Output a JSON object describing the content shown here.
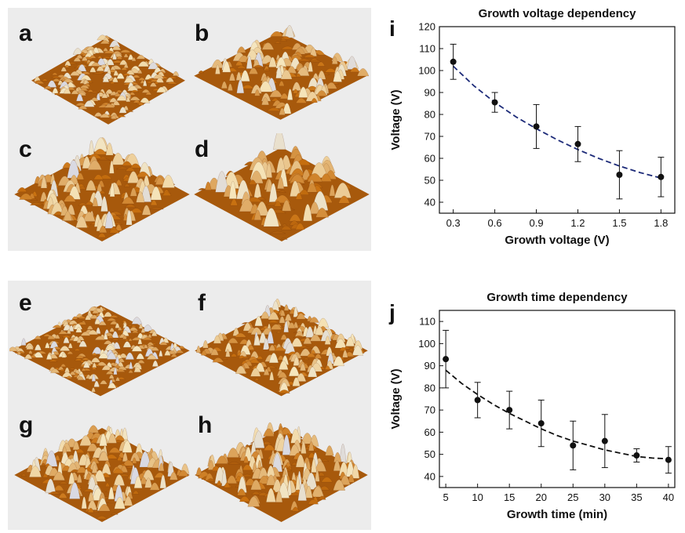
{
  "afm_panels": [
    {
      "label": "a",
      "roughness": 0.3,
      "density": 1.6
    },
    {
      "label": "b",
      "roughness": 0.7,
      "density": 1.0
    },
    {
      "label": "c",
      "roughness": 0.9,
      "density": 1.0
    },
    {
      "label": "d",
      "roughness": 1.2,
      "density": 0.7
    },
    {
      "label": "e",
      "roughness": 0.3,
      "density": 1.8
    },
    {
      "label": "f",
      "roughness": 0.6,
      "density": 1.4
    },
    {
      "label": "g",
      "roughness": 0.8,
      "density": 1.3
    },
    {
      "label": "h",
      "roughness": 1.0,
      "density": 1.3
    }
  ],
  "colors": {
    "afm_low": "#5a2306",
    "afm_mid": "#c8700f",
    "afm_high": "#f6e6bc",
    "afm_peak": "#d9d9e2",
    "afm_background": "#ececec",
    "fit_i": "#1c2a78",
    "fit_j": "#111111"
  },
  "chart_data": [
    {
      "panel_label": "i",
      "type": "scatter",
      "title": "Growth voltage dependency",
      "xlabel": "Growth voltage (V)",
      "ylabel": "Voltage (V)",
      "xlim": [
        0.2,
        1.9
      ],
      "ylim": [
        35,
        120
      ],
      "xticks": [
        "0.3",
        "0.6",
        "0.9",
        "1.2",
        "1.5",
        "1.8"
      ],
      "yticks": [
        "40",
        "50",
        "60",
        "70",
        "80",
        "90",
        "100",
        "110",
        "120"
      ],
      "points": [
        {
          "x": 0.3,
          "y": 104,
          "err": 8
        },
        {
          "x": 0.6,
          "y": 85.5,
          "err": 4.5
        },
        {
          "x": 0.9,
          "y": 74.5,
          "err": 10
        },
        {
          "x": 1.2,
          "y": 66.5,
          "err": 8
        },
        {
          "x": 1.5,
          "y": 52.5,
          "err": 11
        },
        {
          "x": 1.8,
          "y": 51.5,
          "err": 9
        }
      ],
      "fit": {
        "style": "dashed",
        "x": [
          0.3,
          0.45,
          0.6,
          0.75,
          0.9,
          1.05,
          1.2,
          1.35,
          1.5,
          1.65,
          1.8
        ],
        "y": [
          102,
          93,
          85.5,
          79,
          73.5,
          68.5,
          64,
          60,
          56.5,
          53.5,
          51
        ]
      }
    },
    {
      "panel_label": "j",
      "type": "scatter",
      "title": "Growth time dependency",
      "xlabel": "Growth time (min)",
      "ylabel": "Voltage (V)",
      "xlim": [
        4,
        41
      ],
      "ylim": [
        35,
        115
      ],
      "xticks": [
        "5",
        "10",
        "15",
        "20",
        "25",
        "30",
        "35",
        "40"
      ],
      "yticks": [
        "40",
        "50",
        "60",
        "70",
        "80",
        "90",
        "100",
        "110"
      ],
      "points": [
        {
          "x": 5,
          "y": 93,
          "err": 13
        },
        {
          "x": 10,
          "y": 74.5,
          "err": 8
        },
        {
          "x": 15,
          "y": 70,
          "err": 8.5
        },
        {
          "x": 20,
          "y": 64,
          "err": 10.5
        },
        {
          "x": 25,
          "y": 54,
          "err": 11
        },
        {
          "x": 30,
          "y": 56,
          "err": 12
        },
        {
          "x": 35,
          "y": 49.5,
          "err": 3
        },
        {
          "x": 40,
          "y": 47.5,
          "err": 6
        }
      ],
      "fit": {
        "style": "dashed",
        "x": [
          5,
          7.5,
          10,
          12.5,
          15,
          17.5,
          20,
          22.5,
          25,
          27.5,
          30,
          32.5,
          35,
          37.5,
          40
        ],
        "y": [
          88,
          82,
          77,
          72.5,
          68.5,
          65,
          61.5,
          58.5,
          56,
          54,
          52,
          50.5,
          49,
          48.3,
          48
        ]
      }
    }
  ]
}
